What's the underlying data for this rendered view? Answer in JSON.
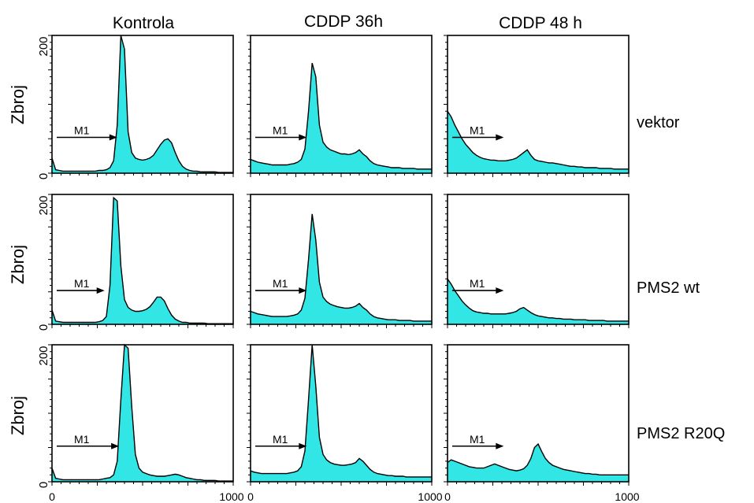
{
  "chart_data": {
    "type": "area",
    "layout": "grid 3x3 histograms",
    "column_labels": [
      "Kontrola",
      "CDDP 36h",
      "CDDP 48 h"
    ],
    "row_labels": [
      "vektor",
      "PMS2 wt",
      "PMS2 R20Q"
    ],
    "ylabel": "Zbroj",
    "xlim": [
      0,
      1000
    ],
    "ylim": [
      0,
      200
    ],
    "x_tick_labels": [
      "0",
      "1000"
    ],
    "y_tick_labels": [
      "0",
      "200"
    ],
    "marker_label": "M1",
    "fill_color": "#33e6e6",
    "line_color": "#000000",
    "x": [
      0,
      20,
      40,
      60,
      80,
      100,
      120,
      140,
      160,
      180,
      200,
      220,
      240,
      260,
      280,
      300,
      320,
      340,
      360,
      380,
      400,
      420,
      440,
      460,
      480,
      500,
      520,
      540,
      560,
      580,
      600,
      620,
      640,
      660,
      680,
      700,
      720,
      740,
      760,
      780,
      800,
      820,
      840,
      860,
      880,
      900,
      920,
      940,
      960,
      980,
      1000
    ],
    "panels": [
      {
        "row": "vektor",
        "col": "Kontrola",
        "marker_range": [
          0,
          360
        ],
        "values": [
          22,
          5,
          4,
          3,
          3,
          3,
          3,
          3,
          3,
          3,
          3,
          3,
          3,
          4,
          4,
          5,
          8,
          18,
          70,
          200,
          180,
          60,
          30,
          22,
          20,
          19,
          20,
          22,
          26,
          34,
          42,
          48,
          50,
          44,
          30,
          18,
          10,
          6,
          4,
          3,
          3,
          2,
          2,
          2,
          2,
          2,
          1,
          1,
          1,
          1,
          1
        ]
      },
      {
        "row": "vektor",
        "col": "CDDP 36h",
        "marker_range": [
          0,
          310
        ],
        "values": [
          20,
          18,
          16,
          15,
          14,
          13,
          12,
          12,
          12,
          12,
          12,
          13,
          14,
          16,
          20,
          35,
          90,
          160,
          140,
          70,
          45,
          38,
          34,
          32,
          30,
          28,
          28,
          27,
          28,
          30,
          34,
          28,
          24,
          18,
          14,
          12,
          11,
          10,
          9,
          8,
          8,
          8,
          7,
          7,
          7,
          7,
          6,
          6,
          6,
          6,
          6
        ]
      },
      {
        "row": "vektor",
        "col": "CDDP 48 h",
        "marker_range": [
          0,
          310
        ],
        "values": [
          90,
          82,
          70,
          60,
          50,
          42,
          36,
          30,
          26,
          23,
          21,
          20,
          19,
          19,
          18,
          18,
          18,
          19,
          20,
          22,
          26,
          30,
          34,
          26,
          20,
          18,
          17,
          16,
          15,
          15,
          14,
          13,
          12,
          11,
          10,
          10,
          9,
          9,
          8,
          8,
          8,
          8,
          7,
          7,
          7,
          7,
          6,
          6,
          6,
          6,
          6
        ]
      },
      {
        "row": "PMS2 wt",
        "col": "Kontrola",
        "marker_range": [
          0,
          290
        ],
        "values": [
          22,
          5,
          4,
          3,
          3,
          3,
          3,
          3,
          3,
          3,
          3,
          3,
          3,
          4,
          6,
          12,
          60,
          195,
          190,
          90,
          38,
          26,
          22,
          20,
          20,
          21,
          23,
          27,
          34,
          42,
          42,
          36,
          24,
          14,
          8,
          5,
          3,
          3,
          2,
          2,
          2,
          2,
          2,
          1,
          1,
          1,
          1,
          1,
          1,
          1,
          1
        ]
      },
      {
        "row": "PMS2 wt",
        "col": "CDDP 36h",
        "marker_range": [
          0,
          310
        ],
        "values": [
          20,
          18,
          16,
          15,
          14,
          13,
          12,
          12,
          12,
          12,
          12,
          13,
          14,
          16,
          22,
          40,
          100,
          170,
          130,
          65,
          42,
          35,
          31,
          29,
          27,
          26,
          25,
          25,
          26,
          28,
          32,
          26,
          22,
          16,
          12,
          10,
          9,
          8,
          7,
          7,
          7,
          6,
          6,
          6,
          6,
          5,
          5,
          5,
          5,
          5,
          5
        ]
      },
      {
        "row": "PMS2 wt",
        "col": "CDDP 48 h",
        "marker_range": [
          0,
          310
        ],
        "values": [
          70,
          62,
          52,
          44,
          36,
          30,
          25,
          21,
          19,
          18,
          17,
          17,
          16,
          16,
          16,
          16,
          16,
          17,
          18,
          20,
          24,
          26,
          22,
          18,
          15,
          13,
          12,
          11,
          10,
          10,
          9,
          9,
          8,
          8,
          8,
          7,
          7,
          7,
          7,
          6,
          6,
          6,
          6,
          6,
          5,
          5,
          5,
          5,
          5,
          5,
          5
        ]
      },
      {
        "row": "PMS2 R20Q",
        "col": "Kontrola",
        "marker_range": [
          0,
          370
        ],
        "values": [
          20,
          5,
          4,
          3,
          3,
          3,
          3,
          3,
          3,
          3,
          3,
          3,
          3,
          3,
          4,
          5,
          6,
          10,
          30,
          120,
          200,
          195,
          110,
          40,
          20,
          14,
          12,
          10,
          9,
          8,
          8,
          8,
          9,
          10,
          11,
          10,
          8,
          6,
          5,
          4,
          3,
          3,
          2,
          2,
          2,
          2,
          1,
          1,
          1,
          1,
          1
        ]
      },
      {
        "row": "PMS2 R20Q",
        "col": "CDDP 36h",
        "marker_range": [
          0,
          310
        ],
        "values": [
          16,
          14,
          13,
          12,
          12,
          12,
          12,
          12,
          12,
          12,
          12,
          13,
          14,
          16,
          22,
          45,
          120,
          200,
          140,
          65,
          40,
          32,
          28,
          26,
          25,
          24,
          24,
          25,
          26,
          28,
          34,
          30,
          24,
          18,
          14,
          12,
          11,
          10,
          9,
          9,
          8,
          8,
          8,
          7,
          7,
          7,
          7,
          7,
          7,
          7,
          7
        ]
      },
      {
        "row": "PMS2 R20Q",
        "col": "CDDP 48 h",
        "marker_range": [
          0,
          310
        ],
        "values": [
          28,
          32,
          30,
          28,
          26,
          24,
          22,
          21,
          20,
          20,
          20,
          22,
          24,
          26,
          24,
          22,
          20,
          18,
          17,
          16,
          17,
          19,
          24,
          34,
          50,
          55,
          44,
          34,
          28,
          24,
          22,
          20,
          18,
          17,
          16,
          15,
          14,
          13,
          12,
          12,
          11,
          11,
          10,
          10,
          10,
          10,
          10,
          10,
          10,
          10,
          10
        ]
      }
    ]
  }
}
